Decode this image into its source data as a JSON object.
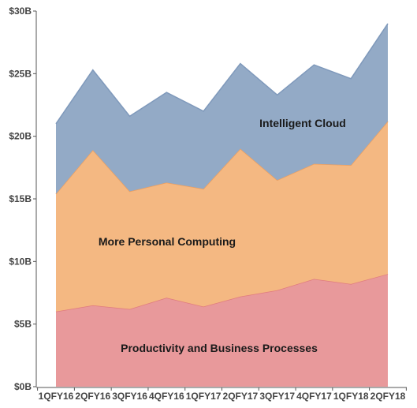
{
  "chart_data": {
    "type": "area",
    "stacked": true,
    "categories": [
      "1QFY16",
      "2QFY16",
      "3QFY16",
      "4QFY16",
      "1QFY17",
      "2QFY17",
      "3QFY17",
      "4QFY17",
      "1QFY18",
      "2QFY18"
    ],
    "series": [
      {
        "name": "Productivity and Business Processes",
        "color": "#e8999b",
        "edge_color": "#e07b7e",
        "values": [
          6.0,
          6.5,
          6.2,
          7.1,
          6.4,
          7.2,
          7.7,
          8.6,
          8.2,
          9.0
        ]
      },
      {
        "name": "More Personal Computing",
        "color": "#f4b882",
        "edge_color": "#ee9f5e",
        "values": [
          9.4,
          12.4,
          9.4,
          9.2,
          9.4,
          11.8,
          8.8,
          9.2,
          9.5,
          12.2
        ]
      },
      {
        "name": "Intelligent Cloud",
        "color": "#93aac6",
        "edge_color": "#7f99bb",
        "values": [
          5.6,
          6.4,
          6.0,
          7.2,
          6.2,
          6.8,
          6.8,
          7.9,
          6.9,
          7.8
        ]
      }
    ],
    "y_ticks": [
      "$0B",
      "$5B",
      "$10B",
      "$15B",
      "$20B",
      "$25B",
      "$30B"
    ],
    "y_tick_values": [
      0,
      5,
      10,
      15,
      20,
      25,
      30
    ],
    "ylim": [
      0,
      30
    ],
    "grid": false,
    "legend": "none (labels drawn inside areas)"
  }
}
